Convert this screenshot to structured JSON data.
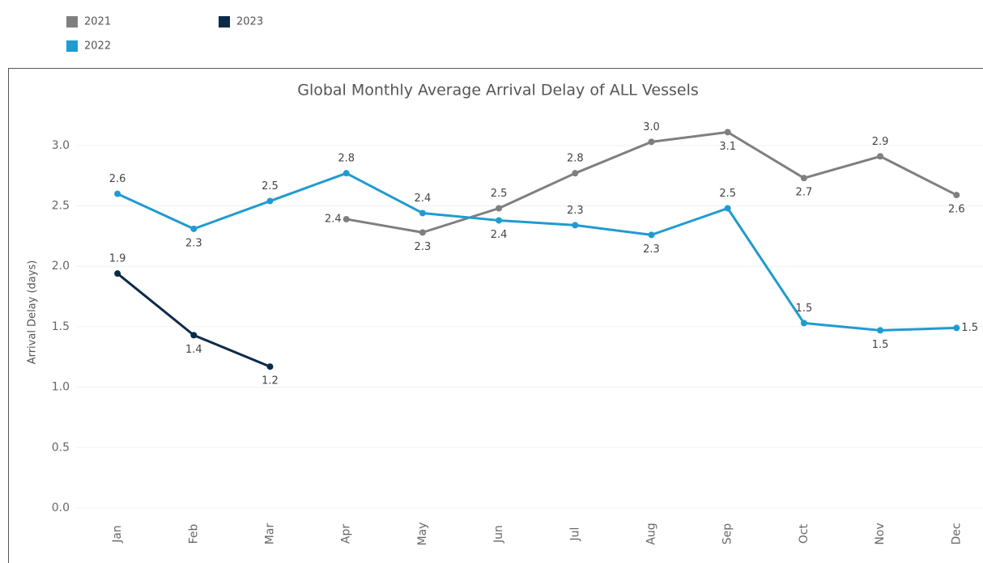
{
  "chart_data": {
    "type": "line",
    "title": "Global Monthly Average Arrival Delay of ALL Vessels",
    "y_label": "Arrival Delay (days)",
    "categories": [
      "Jan",
      "Feb",
      "Mar",
      "Apr",
      "May",
      "Jun",
      "Jul",
      "Aug",
      "Sep",
      "Oct",
      "Nov",
      "Dec"
    ],
    "series": [
      {
        "name": "2021",
        "color": "#7f7f7f",
        "values": [
          null,
          null,
          null,
          2.39,
          2.28,
          2.48,
          2.77,
          3.03,
          3.11,
          2.73,
          2.91,
          2.59
        ],
        "value_labels": [
          null,
          null,
          null,
          "2.4",
          "2.3",
          "2.5",
          "2.8",
          "3.0",
          "3.1",
          "2.7",
          "2.9",
          "2.6"
        ]
      },
      {
        "name": "2022",
        "color": "#1f9bd1",
        "values": [
          2.6,
          2.31,
          2.54,
          2.77,
          2.44,
          2.38,
          2.34,
          2.26,
          2.48,
          1.53,
          1.47,
          1.49
        ],
        "value_labels": [
          "2.6",
          "2.3",
          "2.5",
          "2.8",
          "2.4",
          "2.4",
          "2.3",
          "2.3",
          "2.5",
          "1.5",
          "1.5",
          "1.5"
        ]
      },
      {
        "name": "2023",
        "color": "#0c2a4a",
        "values": [
          1.94,
          1.43,
          1.17,
          null,
          null,
          null,
          null,
          null,
          null,
          null,
          null,
          null
        ],
        "value_labels": [
          "1.9",
          "1.4",
          "1.2",
          null,
          null,
          null,
          null,
          null,
          null,
          null,
          null,
          null
        ]
      }
    ],
    "ylim": [
      0,
      3.3
    ],
    "yticks": [
      {
        "value": 0,
        "label": "0.0"
      },
      0.5,
      {
        "value": 1,
        "label": "1.0"
      },
      1.5,
      {
        "value": 2,
        "label": "2.0"
      },
      2.5,
      {
        "value": 3,
        "label": "3.0"
      }
    ],
    "grid": true
  }
}
